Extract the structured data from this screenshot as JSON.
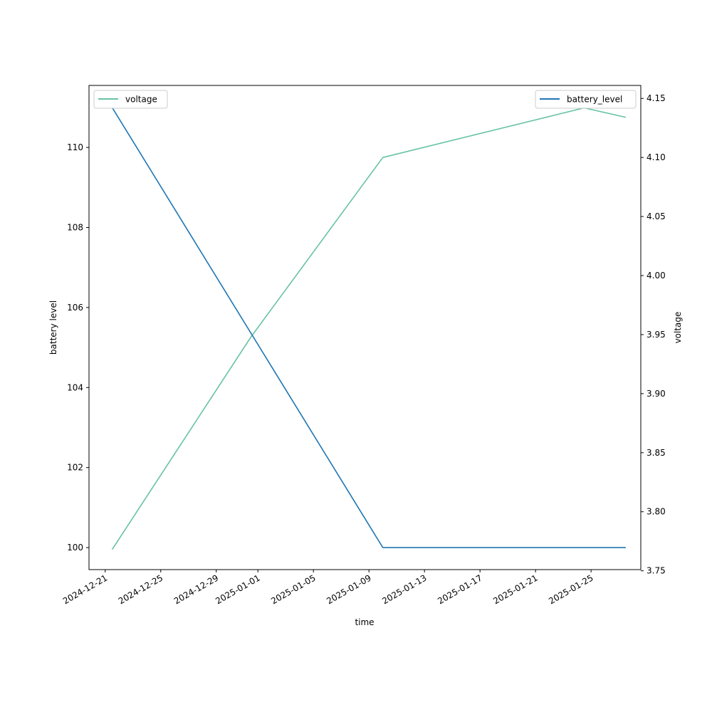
{
  "chart_data": {
    "type": "line",
    "xlabel": "time",
    "ylabel_left": "battery level",
    "ylabel_right": "voltage",
    "x_ticks": [
      "2024-12-21",
      "2024-12-25",
      "2024-12-29",
      "2025-01-01",
      "2025-01-05",
      "2025-01-09",
      "2025-01-13",
      "2025-01-17",
      "2025-01-21",
      "2025-01-25"
    ],
    "x_range": [
      "2024-12-19T20:00",
      "2025-01-28T14:00"
    ],
    "yleft_ticks": [
      100,
      102,
      104,
      106,
      108,
      110
    ],
    "yleft_range": [
      99.45,
      111.55
    ],
    "yright_ticks": [
      "3.75",
      "3.80",
      "3.85",
      "3.90",
      "3.95",
      "4.00",
      "4.05",
      "4.10",
      "4.15"
    ],
    "yright_range": [
      3.751,
      4.161
    ],
    "series": [
      {
        "name": "voltage",
        "axis": "right",
        "color": "#66c2a5",
        "x": [
          "2024-12-21T12:00",
          "2024-12-31T12:00",
          "2025-01-10T00:00",
          "2025-01-24T12:00",
          "2025-01-27T12:00"
        ],
        "y": [
          3.768,
          3.948,
          4.1,
          4.142,
          4.134
        ]
      },
      {
        "name": "battery_level",
        "axis": "left",
        "color": "#1f77b4",
        "x": [
          "2024-12-21T12:00",
          "2025-01-10T00:00",
          "2025-01-27T12:00"
        ],
        "y": [
          111,
          100,
          100
        ]
      }
    ],
    "legends": [
      {
        "series": "voltage",
        "placement": "upper-left"
      },
      {
        "series": "battery_level",
        "placement": "upper-right"
      }
    ]
  }
}
